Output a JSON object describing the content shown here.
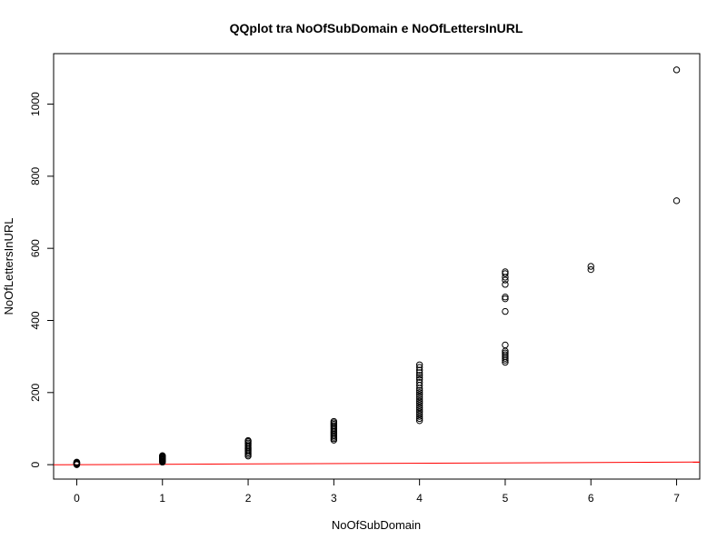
{
  "chart_data": {
    "type": "scatter",
    "title": "QQplot tra NoOfSubDomain e NoOfLettersInURL",
    "xlabel": "NoOfSubDomain",
    "ylabel": "NoOfLettersInURL",
    "xlim": [
      -0.27,
      7.27
    ],
    "ylim": [
      -40,
      1140
    ],
    "xticks": [
      0,
      1,
      2,
      3,
      4,
      5,
      6,
      7
    ],
    "yticks": [
      0,
      200,
      400,
      600,
      800,
      1000
    ],
    "grid": false,
    "legend": "none",
    "point_color": "#000000",
    "line_color": "#ff0000",
    "reference_line": {
      "intercept": 0,
      "slope": 1
    },
    "points": [
      {
        "x": 0,
        "y": [
          0,
          1,
          2,
          3,
          4,
          5,
          6,
          7
        ]
      },
      {
        "x": 1,
        "y": [
          7,
          9,
          11,
          13,
          15,
          17,
          19,
          21,
          23,
          25
        ]
      },
      {
        "x": 2,
        "y": [
          24,
          28,
          32,
          36,
          40,
          44,
          48,
          52,
          56,
          60,
          64,
          67
        ]
      },
      {
        "x": 3,
        "y": [
          68,
          72,
          76,
          80,
          84,
          88,
          92,
          96,
          100,
          104,
          108,
          112,
          116,
          120
        ]
      },
      {
        "x": 4,
        "y": [
          122,
          128,
          134,
          140,
          146,
          152,
          158,
          164,
          170,
          176,
          182,
          188,
          194,
          200,
          206,
          212,
          220,
          228,
          236,
          242,
          248,
          255,
          262,
          270,
          277
        ]
      },
      {
        "x": 5,
        "y": [
          284,
          290,
          295,
          300,
          305,
          310,
          315,
          332,
          425,
          460,
          465,
          500,
          512,
          520,
          530,
          535
        ]
      },
      {
        "x": 6,
        "y": [
          541,
          550
        ]
      },
      {
        "x": 7,
        "y": [
          732,
          1095
        ]
      }
    ]
  }
}
